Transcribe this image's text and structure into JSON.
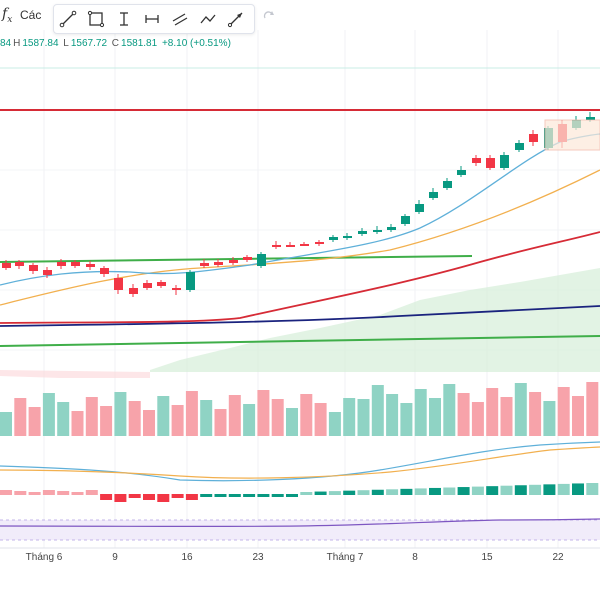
{
  "toolbar": {
    "fx_label": "Các",
    "tools": [
      {
        "icon": "trend-line-icon",
        "name": "tool-trend-line"
      },
      {
        "icon": "rectangle-icon",
        "name": "tool-rectangle"
      },
      {
        "icon": "vertical-measure-icon",
        "name": "tool-measure-vertical"
      },
      {
        "icon": "horizontal-measure-icon",
        "name": "tool-measure-horizontal"
      },
      {
        "icon": "parallel-channel-icon",
        "name": "tool-channel"
      },
      {
        "icon": "polyline-icon",
        "name": "tool-polyline"
      },
      {
        "icon": "arrow-line-icon",
        "name": "tool-arrow"
      }
    ],
    "redo_icon": "redo-icon"
  },
  "legend": {
    "open_partial": "84",
    "high_label": "H",
    "high": "1587.84",
    "low_label": "L",
    "low": "1567.72",
    "close_label": "C",
    "close": "1581.81",
    "change": "+8.10 (+0.51%)"
  },
  "x_axis": {
    "labels": [
      "Tháng 6",
      "9",
      "16",
      "23",
      "Tháng 7",
      "8",
      "15",
      "22"
    ]
  },
  "colors": {
    "up": "#089981",
    "down": "#f23645",
    "volume_up": "#8fd3c4",
    "volume_down": "#f7a3aa",
    "ma_fast": "#5fb0d9",
    "ma_mid": "#f2b04f",
    "ma_slow": "#d62b36",
    "ma_long": "#1a237e",
    "trend_green": "#3fae49",
    "resistance_red": "#d62b36",
    "cloud": "#d6eed9"
  }
}
